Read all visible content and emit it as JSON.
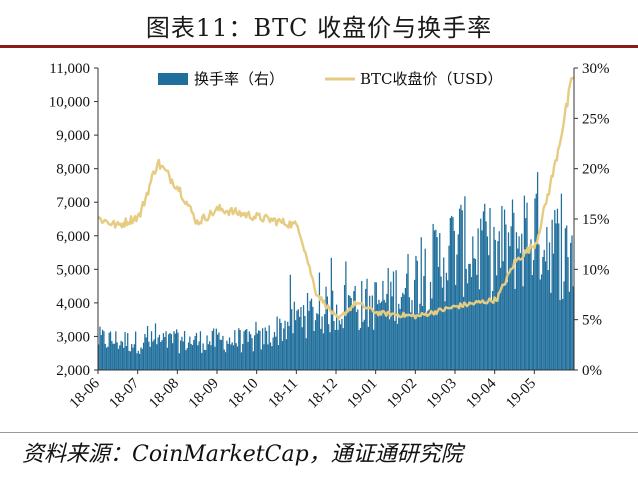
{
  "header": {
    "title": "图表11：BTC 收盘价与换手率"
  },
  "footer": {
    "source": "资料来源：CoinMarketCap，通证通研究院"
  },
  "chart_data": {
    "type": "bar+line",
    "title": "图表11：BTC 收盘价与换手率",
    "x_tick_labels": [
      "18-06",
      "18-07",
      "18-08",
      "18-09",
      "18-10",
      "18-11",
      "18-12",
      "19-01",
      "19-02",
      "19-03",
      "19-04",
      "19-05"
    ],
    "y_left_ticks": [
      "11,000",
      "10,000",
      "9,000",
      "8,000",
      "7,000",
      "6,000",
      "5,000",
      "4,000",
      "3,000",
      "2,000"
    ],
    "y_right_ticks": [
      "30%",
      "25%",
      "20%",
      "15%",
      "10%",
      "5%",
      "0%"
    ],
    "ylim_left": [
      2000,
      11000
    ],
    "ylim_right": [
      0,
      30
    ],
    "legend_position": "top",
    "colors": {
      "bar": "#1f6e9c",
      "line": "#e6cc82"
    },
    "series": [
      {
        "name": "换手率（右）",
        "kind": "bar",
        "axis": "right",
        "unit": "%",
        "x": [
          "18-06",
          "18-07",
          "18-08",
          "18-09",
          "18-10",
          "18-11",
          "18-12",
          "19-01",
          "19-02",
          "19-03",
          "19-04",
          "19-05",
          "19-05 end"
        ],
        "values": [
          3.2,
          2.9,
          3.0,
          3.1,
          3.0,
          5.5,
          6.5,
          7.0,
          9.5,
          13.0,
          12.0,
          15.0,
          11.0
        ]
      },
      {
        "name": "BTC收盘价（USD）",
        "kind": "line",
        "axis": "left",
        "unit": "USD",
        "x": [
          "18-06",
          "18-06 mid",
          "18-07",
          "18-07 mid",
          "18-08",
          "18-08 mid",
          "18-09",
          "18-10",
          "18-11",
          "18-11 mid",
          "18-12",
          "18-12 mid",
          "19-01",
          "19-02",
          "19-03",
          "19-04",
          "19-04 mid",
          "19-05",
          "19-05 mid",
          "19-05 end"
        ],
        "values": [
          6500,
          6300,
          6600,
          8200,
          7400,
          6400,
          6800,
          6550,
          6300,
          4300,
          3500,
          4000,
          3700,
          3600,
          3900,
          4100,
          5200,
          5800,
          8000,
          10800
        ]
      }
    ]
  }
}
